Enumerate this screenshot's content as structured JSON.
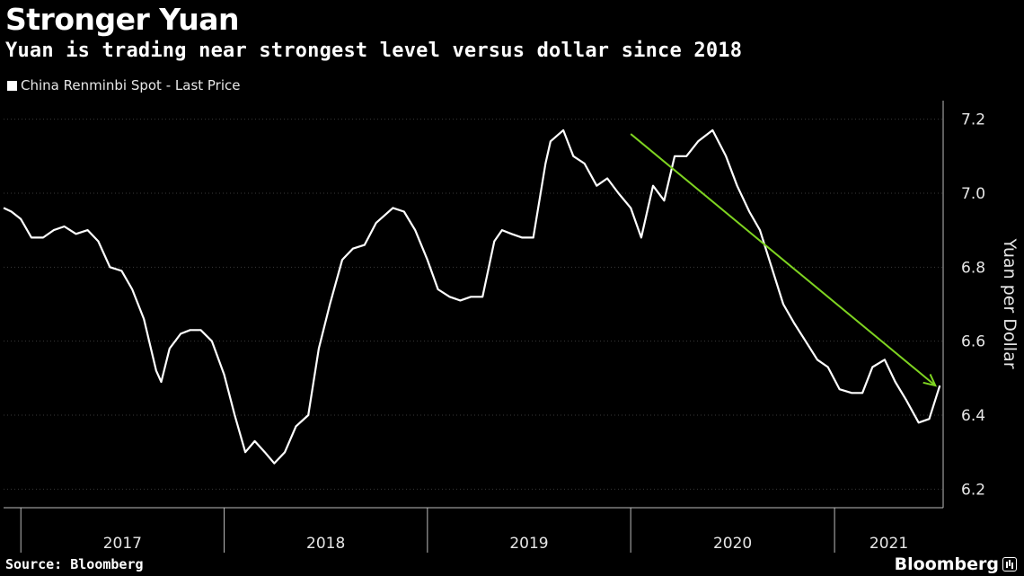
{
  "header": {
    "title": "Stronger Yuan",
    "subtitle": "Yuan is trading near strongest level versus dollar since 2018"
  },
  "footer": {
    "source": "Source: Bloomberg",
    "brand": "Bloomberg"
  },
  "colors": {
    "background": "#000000",
    "series": "#ffffff",
    "arrow": "#7ed321",
    "grid": "#3a3a3a"
  },
  "chart_data": {
    "type": "line",
    "title": "Stronger Yuan",
    "subtitle": "Yuan is trading near strongest level versus dollar since 2018",
    "ylabel": "Yuan per Dollar",
    "xlabel": "",
    "ylim": [
      6.15,
      7.25
    ],
    "yticks": [
      6.2,
      6.4,
      6.6,
      6.8,
      7.0,
      7.2
    ],
    "ytick_labels": [
      "6.2",
      "6.4",
      "6.6",
      "6.8",
      "7.0",
      "7.2"
    ],
    "xlim": [
      "2016-12-01",
      "2021-07-15"
    ],
    "xtick_labels": [
      "2017",
      "2018",
      "2019",
      "2020",
      "2021"
    ],
    "year_dividers": [
      "2017-01-01",
      "2018-01-01",
      "2019-01-01",
      "2020-01-01",
      "2021-01-01"
    ],
    "grid": "horizontal",
    "legend_position": "top-left",
    "series": [
      {
        "name": "China Renminbi Spot - Last Price",
        "x": [
          "2016-12-01",
          "2016-12-15",
          "2017-01-01",
          "2017-01-20",
          "2017-02-10",
          "2017-03-01",
          "2017-03-20",
          "2017-04-10",
          "2017-05-01",
          "2017-05-20",
          "2017-06-10",
          "2017-07-01",
          "2017-07-20",
          "2017-08-10",
          "2017-09-01",
          "2017-09-10",
          "2017-09-25",
          "2017-10-15",
          "2017-11-01",
          "2017-11-20",
          "2017-12-10",
          "2018-01-01",
          "2018-01-20",
          "2018-02-08",
          "2018-02-25",
          "2018-03-15",
          "2018-04-01",
          "2018-04-20",
          "2018-05-10",
          "2018-06-01",
          "2018-06-20",
          "2018-07-10",
          "2018-08-01",
          "2018-08-20",
          "2018-09-10",
          "2018-10-01",
          "2018-10-31",
          "2018-11-20",
          "2018-12-10",
          "2019-01-01",
          "2019-01-20",
          "2019-02-10",
          "2019-03-01",
          "2019-03-20",
          "2019-04-10",
          "2019-05-01",
          "2019-05-15",
          "2019-06-01",
          "2019-06-20",
          "2019-07-10",
          "2019-08-01",
          "2019-08-10",
          "2019-09-02",
          "2019-09-20",
          "2019-10-10",
          "2019-11-01",
          "2019-11-20",
          "2019-12-10",
          "2020-01-01",
          "2020-01-20",
          "2020-02-10",
          "2020-03-01",
          "2020-03-20",
          "2020-04-10",
          "2020-05-01",
          "2020-05-27",
          "2020-06-20",
          "2020-07-10",
          "2020-08-01",
          "2020-08-20",
          "2020-09-10",
          "2020-10-01",
          "2020-10-20",
          "2020-11-10",
          "2020-12-01",
          "2020-12-20",
          "2021-01-10",
          "2021-02-01",
          "2021-02-20",
          "2021-03-10",
          "2021-04-01",
          "2021-04-20",
          "2021-05-10",
          "2021-06-01",
          "2021-06-20",
          "2021-07-09"
        ],
        "y": [
          6.96,
          6.95,
          6.93,
          6.88,
          6.88,
          6.9,
          6.91,
          6.89,
          6.9,
          6.87,
          6.8,
          6.79,
          6.74,
          6.66,
          6.52,
          6.49,
          6.58,
          6.62,
          6.63,
          6.63,
          6.6,
          6.51,
          6.4,
          6.3,
          6.33,
          6.3,
          6.27,
          6.3,
          6.37,
          6.4,
          6.58,
          6.7,
          6.82,
          6.85,
          6.86,
          6.92,
          6.96,
          6.95,
          6.9,
          6.82,
          6.74,
          6.72,
          6.71,
          6.72,
          6.72,
          6.87,
          6.9,
          6.89,
          6.88,
          6.88,
          7.08,
          7.14,
          7.17,
          7.1,
          7.08,
          7.02,
          7.04,
          7.0,
          6.96,
          6.88,
          7.02,
          6.98,
          7.1,
          7.1,
          7.14,
          7.17,
          7.1,
          7.02,
          6.95,
          6.9,
          6.8,
          6.7,
          6.65,
          6.6,
          6.55,
          6.53,
          6.47,
          6.46,
          6.46,
          6.53,
          6.55,
          6.49,
          6.44,
          6.38,
          6.39,
          6.48
        ]
      }
    ],
    "annotations": [
      {
        "type": "arrow",
        "from": [
          "2020-01-01",
          7.16
        ],
        "to": [
          "2021-07-01",
          6.48
        ],
        "color": "#7ed321"
      }
    ]
  }
}
